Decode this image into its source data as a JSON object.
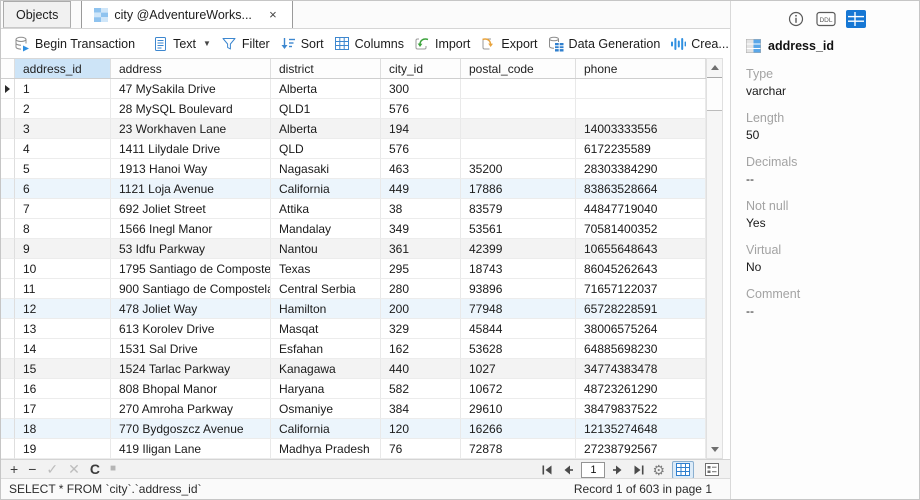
{
  "tabs": {
    "objects": "Objects",
    "table_tab": "city @AdventureWorks...",
    "close_glyph": "×"
  },
  "toolbar": {
    "items": [
      {
        "label": "Begin Transaction"
      },
      {
        "label": "Text"
      },
      {
        "label": "Filter"
      },
      {
        "label": "Sort"
      },
      {
        "label": "Columns"
      },
      {
        "label": "Import"
      },
      {
        "label": "Export"
      },
      {
        "label": "Data Generation"
      },
      {
        "label": "Crea..."
      }
    ],
    "overflow_glyph": "»"
  },
  "grid": {
    "columns": [
      "address_id",
      "address",
      "district",
      "city_id",
      "postal_code",
      "phone"
    ],
    "selected_column": "address_id",
    "rows": [
      [
        "1",
        "47 MySakila Drive",
        "Alberta",
        "300",
        "",
        ""
      ],
      [
        "2",
        "28 MySQL Boulevard",
        "QLD1",
        "576",
        "",
        ""
      ],
      [
        "3",
        "23 Workhaven Lane",
        "Alberta",
        "194",
        "",
        "14003333556"
      ],
      [
        "4",
        "1411 Lilydale Drive",
        "QLD",
        "576",
        "",
        "6172235589"
      ],
      [
        "5",
        "1913 Hanoi Way",
        "Nagasaki",
        "463",
        "35200",
        "28303384290"
      ],
      [
        "6",
        "1121 Loja Avenue",
        "California",
        "449",
        "17886",
        "83863528664"
      ],
      [
        "7",
        "692 Joliet Street",
        "Attika",
        "38",
        "83579",
        "44847719040"
      ],
      [
        "8",
        "1566 Inegl Manor",
        "Mandalay",
        "349",
        "53561",
        "70581400352"
      ],
      [
        "9",
        "53 Idfu Parkway",
        "Nantou",
        "361",
        "42399",
        "10655648643"
      ],
      [
        "10",
        "1795 Santiago de Composte",
        "Texas",
        "295",
        "18743",
        "86045262643"
      ],
      [
        "11",
        "900 Santiago de Compostela",
        "Central Serbia",
        "280",
        "93896",
        "71657122037"
      ],
      [
        "12",
        "478 Joliet Way",
        "Hamilton",
        "200",
        "77948",
        "65728228591"
      ],
      [
        "13",
        "613 Korolev Drive",
        "Masqat",
        "329",
        "45844",
        "38006575264"
      ],
      [
        "14",
        "1531 Sal Drive",
        "Esfahan",
        "162",
        "53628",
        "64885698230"
      ],
      [
        "15",
        "1524 Tarlac Parkway",
        "Kanagawa",
        "440",
        "1027",
        "34774383478"
      ],
      [
        "16",
        "808 Bhopal Manor",
        "Haryana",
        "582",
        "10672",
        "48723261290"
      ],
      [
        "17",
        "270 Amroha Parkway",
        "Osmaniye",
        "384",
        "29610",
        "38479837522"
      ],
      [
        "18",
        "770 Bydgoszcz Avenue",
        "California",
        "120",
        "16266",
        "12135274648"
      ],
      [
        "19",
        "419 Iligan Lane",
        "Madhya Pradesh",
        "76",
        "72878",
        "27238792567"
      ]
    ]
  },
  "pagination": {
    "page": "1",
    "record_status": "Record 1 of 603 in page 1"
  },
  "statusbar": {
    "sql": "SELECT * FROM `city`.`address_id`"
  },
  "panel": {
    "ddl_label": "DDL",
    "title": "address_id",
    "props": [
      {
        "label": "Type",
        "value": "varchar"
      },
      {
        "label": "Length",
        "value": "50"
      },
      {
        "label": "Decimals",
        "value": "--"
      },
      {
        "label": "Not null",
        "value": "Yes"
      },
      {
        "label": "Virtual",
        "value": "No"
      },
      {
        "label": "Comment",
        "value": "--"
      }
    ]
  },
  "colors": {
    "accent_blue": "#2f7fce",
    "selected_header_bg": "#cde4f7",
    "row_tint_gray": "#f3f3f3",
    "row_tint_blue": "#ecf5fc",
    "import_green": "#3da33d",
    "export_orange": "#e8a33d"
  }
}
